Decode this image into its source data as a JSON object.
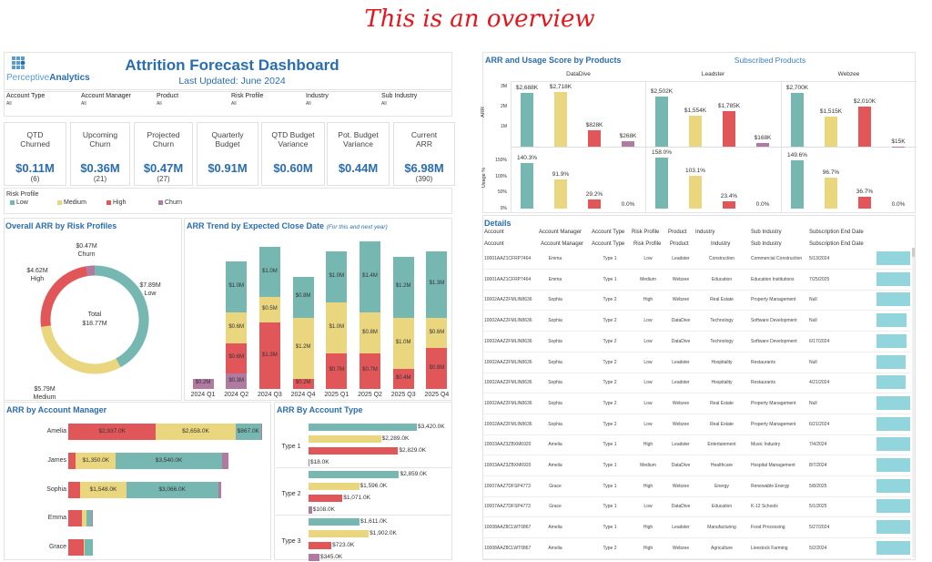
{
  "overview_label": "This is an overview",
  "header": {
    "logo_text_light": "Perceptive",
    "logo_text_bold": "Analytics",
    "title": "Attrition Forecast Dashboard",
    "subtitle": "Last Updated: June 2024"
  },
  "filters": [
    {
      "label": "Account Type",
      "value": "All"
    },
    {
      "label": "Account Manager",
      "value": "All"
    },
    {
      "label": "Product",
      "value": "All"
    },
    {
      "label": "Risk Profile",
      "value": "All"
    },
    {
      "label": "Industry",
      "value": "All"
    },
    {
      "label": "Sub Industry",
      "value": "All"
    }
  ],
  "kpis": [
    {
      "title": "QTD Churned",
      "value": "$0.11M",
      "count": "(6)"
    },
    {
      "title": "Upcoming Churn",
      "value": "$0.36M",
      "count": "(21)"
    },
    {
      "title": "Projected Churn",
      "value": "$0.47M",
      "count": "(27)"
    },
    {
      "title": "Quarterly Budget",
      "value": "$0.91M",
      "count": ""
    },
    {
      "title": "QTD Budget Variance",
      "value": "$0.60M",
      "count": ""
    },
    {
      "title": "Pot. Budget Variance",
      "value": "$0.44M",
      "count": ""
    },
    {
      "title": "Current ARR",
      "value": "$6.98M",
      "count": "(390)"
    }
  ],
  "legend": {
    "title": "Risk Profile",
    "items": [
      {
        "label": "Low",
        "color": "#76b7b2"
      },
      {
        "label": "Medium",
        "color": "#e9d67e"
      },
      {
        "label": "High",
        "color": "#e15759"
      },
      {
        "label": "Churn",
        "color": "#b07aa1"
      }
    ]
  },
  "colors": {
    "Low": "#76b7b2",
    "Medium": "#e9d67e",
    "High": "#e15759",
    "Churn": "#b07aa1",
    "accent": "#2a6db0",
    "detail_bar": "#93d5dc"
  },
  "chart_data": [
    {
      "id": "donut",
      "type": "pie",
      "title": "Overall ARR by Risk Profiles",
      "categories": [
        "Low",
        "Medium",
        "High",
        "Churn"
      ],
      "values": [
        7.89,
        5.79,
        4.62,
        0.47
      ],
      "labels": [
        "$7.89M",
        "$5.79M",
        "$4.62M",
        "$0.47M"
      ],
      "center_label": "Total",
      "center_value": "$18.77M"
    },
    {
      "id": "trend",
      "type": "bar",
      "stacked": true,
      "title": "ARR Trend by Expected Close Date",
      "subtitle": "(For this and next year)",
      "categories": [
        "2024 Q1",
        "2024 Q2",
        "2024 Q3",
        "2024 Q4",
        "2025 Q1",
        "2025 Q2",
        "2025 Q3",
        "2025 Q4"
      ],
      "series": [
        {
          "name": "Churn",
          "values": [
            0.2,
            0.3,
            0,
            0,
            0,
            0,
            0,
            0
          ]
        },
        {
          "name": "High",
          "values": [
            0,
            0.6,
            1.3,
            0.2,
            0.7,
            0.7,
            0.4,
            0.8
          ]
        },
        {
          "name": "Medium",
          "values": [
            0,
            0.6,
            0.5,
            1.2,
            1.0,
            0.8,
            1.0,
            0.6
          ]
        },
        {
          "name": "Low",
          "values": [
            0,
            1.0,
            1.0,
            0.8,
            1.0,
            1.4,
            1.2,
            1.3
          ]
        }
      ],
      "unit": "$M"
    },
    {
      "id": "manager",
      "type": "bar",
      "orientation": "horizontal",
      "stacked": true,
      "title": "ARR by Account Manager",
      "categories": [
        "Amelia",
        "James",
        "Sophia",
        "Emma",
        "Grace"
      ],
      "series": [
        {
          "name": "High",
          "values": [
            2937,
            250,
            400,
            450,
            520
          ],
          "labels": [
            "$2,937.0K",
            "",
            "",
            "",
            ""
          ]
        },
        {
          "name": "Medium",
          "values": [
            2658,
            1350,
            1548,
            150,
            30
          ],
          "labels": [
            "$2,658.0K",
            "$1,350.0K",
            "$1,548.0K",
            "",
            ""
          ]
        },
        {
          "name": "Low",
          "values": [
            867,
            3540,
            3066,
            200,
            280
          ],
          "labels": [
            "$867.0K",
            "$3,540.0K",
            "$3,066.0K",
            "",
            ""
          ]
        },
        {
          "name": "Churn",
          "values": [
            30,
            220,
            100,
            30,
            0
          ],
          "labels": [
            "",
            "",
            "",
            "",
            ""
          ]
        }
      ]
    },
    {
      "id": "acctype",
      "type": "bar",
      "orientation": "horizontal",
      "title": "ARR By Account Type",
      "categories": [
        "Type 1",
        "Type 2",
        "Type 3"
      ],
      "series": [
        {
          "name": "Low",
          "values": [
            3420,
            2859,
            1611
          ],
          "labels": [
            "$3,420.0K",
            "$2,859.0K",
            "$1,611.0K"
          ]
        },
        {
          "name": "Medium",
          "values": [
            2289,
            1596,
            1902
          ],
          "labels": [
            "$2,289.0K",
            "$1,596.0K",
            "$1,902.0K"
          ]
        },
        {
          "name": "High",
          "values": [
            2829,
            1071,
            723
          ],
          "labels": [
            "$2,829.0K",
            "$1,071.0K",
            "$723.0K"
          ]
        },
        {
          "name": "Churn",
          "values": [
            18,
            108,
            345
          ],
          "labels": [
            "$18.0K",
            "$108.0K",
            "$345.0K"
          ]
        }
      ]
    },
    {
      "id": "products",
      "type": "bar",
      "title": "ARR and Usage Score by Products",
      "subtitle": "Subscribed Products",
      "categories": [
        "DataDive",
        "Leadster",
        "Webzee"
      ],
      "risk_order": [
        "Low",
        "Medium",
        "High",
        "Churn"
      ],
      "arr": {
        "axis_label": "ARR",
        "ticks": [
          "3M",
          "2M",
          "1M"
        ],
        "values": [
          [
            2688,
            2718,
            828,
            268
          ],
          [
            2502,
            1554,
            1785,
            168
          ],
          [
            2700,
            1515,
            2010,
            15
          ]
        ],
        "labels": [
          [
            "$2,688K",
            "$2,718K",
            "$828K",
            "$268K"
          ],
          [
            "$2,502K",
            "$1,554K",
            "$1,785K",
            "$168K"
          ],
          [
            "$2,700K",
            "$1,515K",
            "$2,010K",
            "$15K"
          ]
        ]
      },
      "usage": {
        "axis_label": "Usage %",
        "ticks": [
          "150%",
          "100%",
          "50%",
          "0%"
        ],
        "values": [
          [
            140.3,
            91.9,
            29.2,
            0
          ],
          [
            158.0,
            103.1,
            23.4,
            0
          ],
          [
            149.6,
            96.7,
            36.7,
            0
          ]
        ],
        "labels": [
          [
            "140.3%",
            "91.9%",
            "29.2%",
            "0.0%"
          ],
          [
            "158.0%",
            "103.1%",
            "23.4%",
            "0.0%"
          ],
          [
            "149.6%",
            "96.7%",
            "36.7%",
            "0.0%"
          ]
        ]
      }
    }
  ],
  "details": {
    "title": "Details",
    "headers": [
      "Account",
      "Account Manager",
      "Account Type",
      "Risk Profile",
      "Product",
      "Industry",
      "Sub Industry",
      "Subscription End Date"
    ],
    "rows": [
      [
        "10001AAZ1CFRP7464",
        "Emma",
        "Type 1",
        "Low",
        "Leadster",
        "Construction",
        "Commercial Construction",
        "5/13/2024"
      ],
      [
        "10001AAZ1CFRP7464",
        "Emma",
        "Type 1",
        "Medium",
        "Webzee",
        "Education",
        "Education Institutions",
        "7/25/2025"
      ],
      [
        "10002AAZ2FMLIN8636",
        "Sophia",
        "Type 2",
        "High",
        "Webzee",
        "Real Estate",
        "Property Management",
        "Null"
      ],
      [
        "10002AAZ2FMLIN8636",
        "Sophia",
        "Type 2",
        "Low",
        "DataDive",
        "Technology",
        "Software Development",
        "Null"
      ],
      [
        "10002AAZ2FMLIN8636",
        "Sophia",
        "Type 2",
        "Low",
        "DataDive",
        "Technology",
        "Software Development",
        "6/17/2024"
      ],
      [
        "10002AAZ2FMLIN8636",
        "Sophia",
        "Type 2",
        "Low",
        "Leadster",
        "Hospitality",
        "Restaurants",
        "Null"
      ],
      [
        "10002AAZ2FMLIN8636",
        "Sophia",
        "Type 2",
        "Low",
        "Leadster",
        "Hospitality",
        "Restaurants",
        "4/21/2024"
      ],
      [
        "10002AAZ2FMLIN8636",
        "Sophia",
        "Type 2",
        "Low",
        "Webzee",
        "Real Estate",
        "Property Management",
        "Null"
      ],
      [
        "10002AAZ2FMLIN8636",
        "Sophia",
        "Type 2",
        "Low",
        "Webzee",
        "Real Estate",
        "Property Management",
        "6/21/2024"
      ],
      [
        "10003AAZ3ZBXM6920",
        "Amelia",
        "Type 1",
        "High",
        "Leadster",
        "Entertainment",
        "Music Industry",
        "7/4/2024"
      ],
      [
        "10003AAZ3ZBXM6920",
        "Amelia",
        "Type 1",
        "Medium",
        "DataDive",
        "Healthcare",
        "Hospital Management",
        "8/7/2024"
      ],
      [
        "10007AAZ7DFSP4773",
        "Grace",
        "Type 1",
        "High",
        "Webzee",
        "Energy",
        "Renewable Energy",
        "5/8/2025"
      ],
      [
        "10007AAZ7DFSP4773",
        "Grace",
        "Type 1",
        "Low",
        "DataDive",
        "Education",
        "K-12 Schools",
        "5/1/2025"
      ],
      [
        "10008AAZ8CLWT0867",
        "Amelia",
        "Type 1",
        "High",
        "Leadster",
        "Manufacturing",
        "Food Processing",
        "5/27/2024"
      ],
      [
        "10008AAZ8CLWT0867",
        "Amelia",
        "Type 2",
        "High",
        "Webzee",
        "Agriculture",
        "Livestock Farming",
        "5/2/2024"
      ]
    ],
    "bar_fill": [
      1,
      1,
      1,
      0.9,
      0.9,
      0.87,
      0.87,
      1,
      1,
      1,
      1,
      1,
      1,
      1,
      1
    ]
  }
}
